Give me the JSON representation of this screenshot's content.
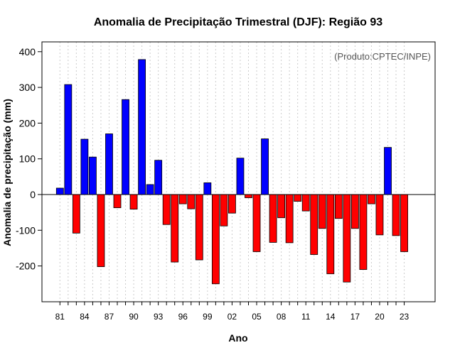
{
  "chart_data": {
    "type": "bar",
    "title": "Anomalia de Precipitação Trimestral (DJF): Região 93",
    "xlabel": "Ano",
    "ylabel": "Anomalia de precipitação (mm)",
    "credit": "(Produto:CPTEC/INPE)",
    "ylim": [
      -300,
      430
    ],
    "yticks": [
      -200,
      -100,
      0,
      100,
      200,
      300,
      400
    ],
    "xtick_labels": [
      "81",
      "84",
      "87",
      "90",
      "93",
      "96",
      "99",
      "02",
      "05",
      "08",
      "11",
      "14",
      "17",
      "20",
      "23"
    ],
    "xtick_every": 3,
    "grid": "vertical dotted",
    "colors": {
      "positive": "#0000ff",
      "negative": "#ff0000",
      "zero_line": "#000000",
      "grid": "#cccccc"
    },
    "categories": [
      "1981",
      "1982",
      "1983",
      "1984",
      "1985",
      "1986",
      "1987",
      "1988",
      "1989",
      "1990",
      "1991",
      "1992",
      "1993",
      "1994",
      "1995",
      "1996",
      "1997",
      "1998",
      "1999",
      "2000",
      "2001",
      "2002",
      "2003",
      "2004",
      "2005",
      "2006",
      "2007",
      "2008",
      "2009",
      "2010",
      "2011",
      "2012",
      "2013",
      "2014",
      "2015",
      "2016",
      "2017",
      "2018",
      "2019",
      "2020",
      "2021",
      "2022",
      "2023"
    ],
    "values": [
      18,
      308,
      -108,
      155,
      105,
      -202,
      170,
      -37,
      266,
      -41,
      378,
      28,
      96,
      -84,
      -189,
      -26,
      -40,
      -183,
      33,
      -250,
      -88,
      -52,
      102,
      -9,
      -160,
      156,
      -134,
      -65,
      -135,
      -19,
      -46,
      -168,
      -95,
      -222,
      -67,
      -245,
      -95,
      -210,
      -26,
      -113,
      132,
      -115,
      -160
    ]
  }
}
